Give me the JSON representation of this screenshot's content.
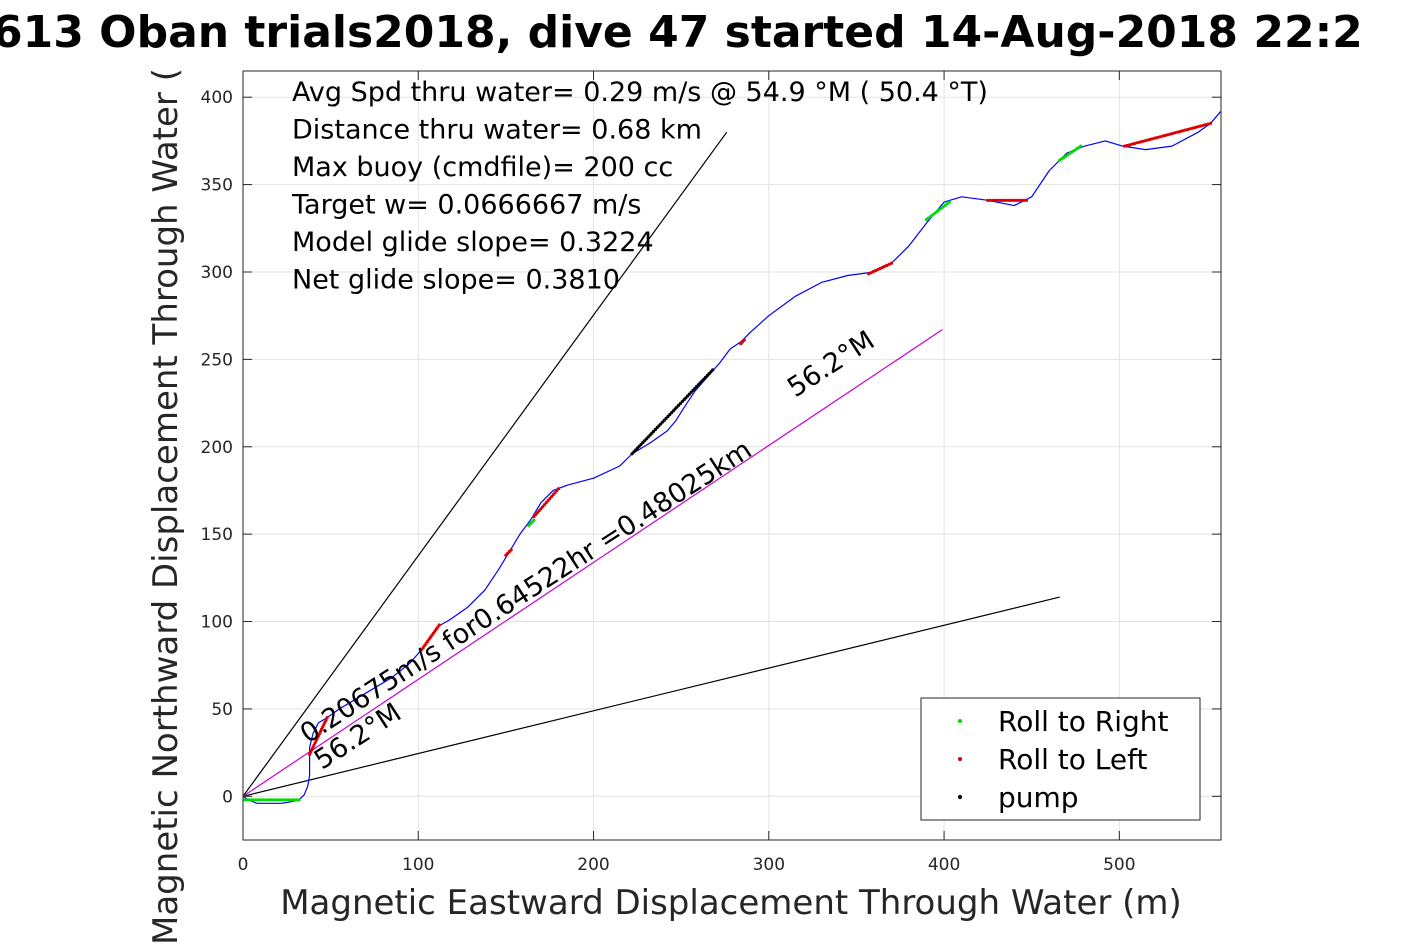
{
  "chart_data": {
    "type": "line",
    "title": "613 Oban trials2018, dive 47 started 14-Aug-2018 22:2",
    "xlabel": "Magnetic Eastward Displacement Through Water (m)",
    "ylabel": "Magnetic Northward Displacement Through Water (",
    "xlim": [
      0,
      558
    ],
    "ylim": [
      -25,
      415
    ],
    "xticks": [
      0,
      100,
      200,
      300,
      400,
      500
    ],
    "yticks": [
      0,
      50,
      100,
      150,
      200,
      250,
      300,
      350,
      400
    ],
    "grid": true,
    "legend_position": "bottom-right",
    "info_lines": [
      "Avg Spd thru water=  0.29 m/s @  54.9 °M ( 50.4 °T)",
      "Distance thru water=  0.68 km",
      "Max buoy (cmdfile)= 200 cc",
      "Target w= 0.0666667 m/s",
      "Model glide slope= 0.3224",
      "Net glide slope= 0.3810"
    ],
    "annotations": [
      {
        "text": "0.20675m/s for0.64522hr =0.48025km",
        "at": [
          37,
          30
        ],
        "angle_deg": 33
      },
      {
        "text": "56.2°M",
        "at": [
          45,
          15
        ],
        "angle_deg": 33
      },
      {
        "text": "56.2°M",
        "at": [
          315,
          228
        ],
        "angle_deg": 33
      }
    ],
    "reference_lines": [
      {
        "color": "#000000",
        "points": [
          [
            0,
            0
          ],
          [
            276,
            380
          ]
        ]
      },
      {
        "color": "#000000",
        "points": [
          [
            0,
            0
          ],
          [
            466,
            114
          ]
        ]
      },
      {
        "color": "#cc00cc",
        "points": [
          [
            0,
            0
          ],
          [
            399,
            267
          ]
        ]
      }
    ],
    "track": {
      "color": "#0000ff",
      "points": [
        [
          0,
          0
        ],
        [
          3,
          -2
        ],
        [
          8,
          -4
        ],
        [
          15,
          -4
        ],
        [
          22,
          -4
        ],
        [
          28,
          -3
        ],
        [
          32,
          -2
        ],
        [
          35,
          1
        ],
        [
          37,
          6
        ],
        [
          38,
          12
        ],
        [
          38,
          20
        ],
        [
          38,
          28
        ],
        [
          40,
          36
        ],
        [
          43,
          42
        ],
        [
          48,
          45
        ],
        [
          55,
          50
        ],
        [
          65,
          56
        ],
        [
          75,
          62
        ],
        [
          85,
          68
        ],
        [
          95,
          76
        ],
        [
          102,
          84
        ],
        [
          106,
          90
        ],
        [
          111,
          97
        ],
        [
          118,
          101
        ],
        [
          128,
          108
        ],
        [
          138,
          118
        ],
        [
          146,
          130
        ],
        [
          152,
          140
        ],
        [
          158,
          150
        ],
        [
          164,
          158
        ],
        [
          170,
          168
        ],
        [
          177,
          175
        ],
        [
          185,
          178
        ],
        [
          200,
          182
        ],
        [
          215,
          189
        ],
        [
          222,
          196
        ],
        [
          232,
          202
        ],
        [
          242,
          209
        ],
        [
          247,
          215
        ],
        [
          252,
          223
        ],
        [
          258,
          232
        ],
        [
          265,
          240
        ],
        [
          272,
          248
        ],
        [
          278,
          256
        ],
        [
          284,
          260
        ],
        [
          290,
          266
        ],
        [
          300,
          275
        ],
        [
          315,
          286
        ],
        [
          330,
          294
        ],
        [
          345,
          298
        ],
        [
          360,
          300
        ],
        [
          370,
          305
        ],
        [
          380,
          315
        ],
        [
          390,
          328
        ],
        [
          400,
          340
        ],
        [
          410,
          343
        ],
        [
          425,
          341
        ],
        [
          440,
          338
        ],
        [
          450,
          343
        ],
        [
          460,
          358
        ],
        [
          470,
          368
        ],
        [
          480,
          372
        ],
        [
          492,
          375
        ],
        [
          502,
          372
        ],
        [
          515,
          370
        ],
        [
          530,
          372
        ],
        [
          545,
          380
        ],
        [
          552,
          385
        ],
        [
          558,
          392
        ]
      ]
    },
    "series": [
      {
        "name": "Roll to Right",
        "color": "#00dd00",
        "segments": [
          [
            [
              0,
              -2
            ],
            [
              32,
              -2
            ]
          ],
          [
            [
              163,
              155
            ],
            [
              166,
              158
            ]
          ],
          [
            [
              390,
              330
            ],
            [
              403,
              340
            ]
          ],
          [
            [
              466,
              364
            ],
            [
              478,
              372
            ]
          ]
        ]
      },
      {
        "name": "Roll to Left",
        "color": "#dd0000",
        "segments": [
          [
            [
              38,
              24
            ],
            [
              48,
              45
            ]
          ],
          [
            [
              102,
              84
            ],
            [
              112,
              98
            ]
          ],
          [
            [
              166,
              160
            ],
            [
              180,
              176
            ]
          ],
          [
            [
              150,
              138
            ],
            [
              153,
              141
            ]
          ],
          [
            [
              357,
              299
            ],
            [
              370,
              305
            ]
          ],
          [
            [
              425,
              341
            ],
            [
              447,
              341
            ]
          ],
          [
            [
              503,
              372
            ],
            [
              552,
              385
            ]
          ],
          [
            [
              284,
              259
            ],
            [
              286,
              261
            ]
          ]
        ]
      },
      {
        "name": "pump",
        "color": "#000000",
        "segments": [
          [
            [
              222,
              196
            ],
            [
              268,
              244
            ]
          ]
        ]
      }
    ]
  }
}
